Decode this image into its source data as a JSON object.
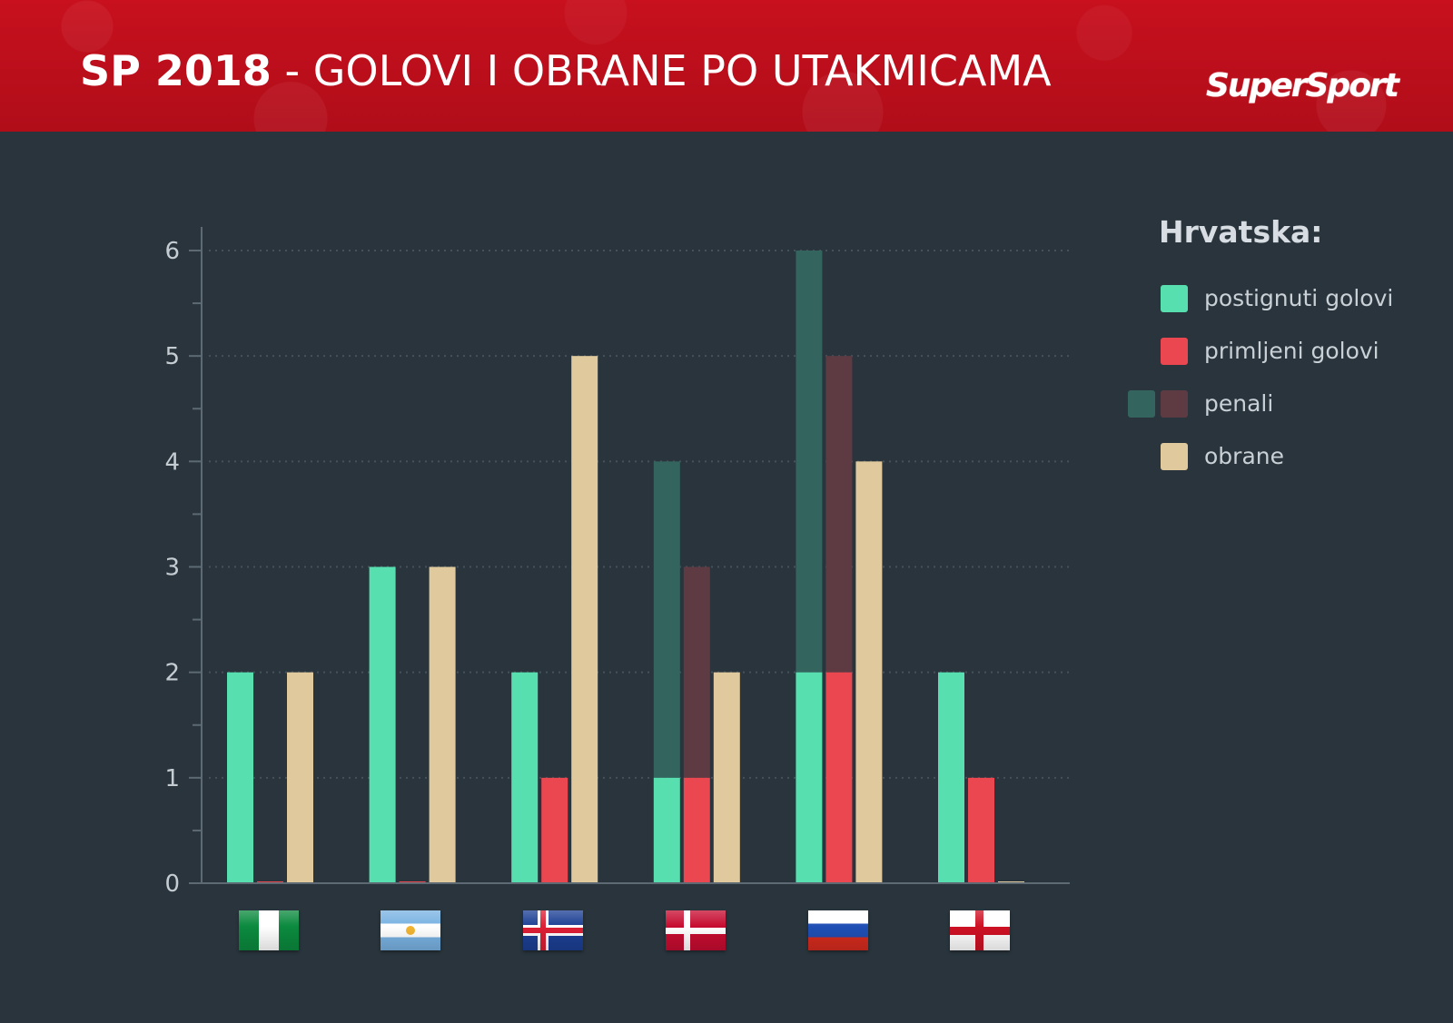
{
  "header": {
    "title_strong": "SP 2018",
    "title_rest": " - GOLOVI I OBRANE PO UTAKMICAMA",
    "logo": "SuperSport"
  },
  "legend": {
    "title": "Hrvatska:",
    "items": [
      {
        "label": "postignuti golovi",
        "colors": [
          "#57dfb0"
        ]
      },
      {
        "label": "primljeni golovi",
        "colors": [
          "#ea4750"
        ]
      },
      {
        "label": "penali",
        "colors": [
          "#34645e",
          "#5e3b43"
        ]
      },
      {
        "label": "obrane",
        "colors": [
          "#e0c99c"
        ]
      }
    ]
  },
  "flags": [
    "nigeria-flag",
    "argentina-flag",
    "iceland-flag",
    "denmark-flag",
    "russia-flag",
    "england-flag"
  ],
  "colors": {
    "goals_scored": "#57dfb0",
    "goals_conceded": "#ea4750",
    "penalties_scored": "#34645e",
    "penalties_conceded": "#5e3b43",
    "saves": "#e0c99c",
    "axis": "#5d6a73",
    "grid": "#45525b",
    "tick_text": "#c5ccd2"
  },
  "chart_data": {
    "type": "bar",
    "categories": [
      "Nigeria",
      "Argentina",
      "Island",
      "Danska",
      "Rusija",
      "Engleska"
    ],
    "ylim": [
      0,
      6
    ],
    "yticks": [
      0,
      1,
      2,
      3,
      4,
      5,
      6
    ],
    "grid": true,
    "legend_position": "right",
    "series": [
      {
        "name": "postignuti golovi",
        "values": [
          2,
          3,
          2,
          1,
          2,
          2
        ]
      },
      {
        "name": "primljeni golovi",
        "values": [
          0,
          0,
          1,
          1,
          2,
          1
        ]
      },
      {
        "name": "penali",
        "values_scored": [
          0,
          0,
          0,
          3,
          4,
          0
        ],
        "values_conceded": [
          0,
          0,
          0,
          2,
          3,
          0
        ]
      },
      {
        "name": "obrane",
        "values": [
          2,
          3,
          5,
          2,
          4,
          0
        ]
      }
    ]
  }
}
